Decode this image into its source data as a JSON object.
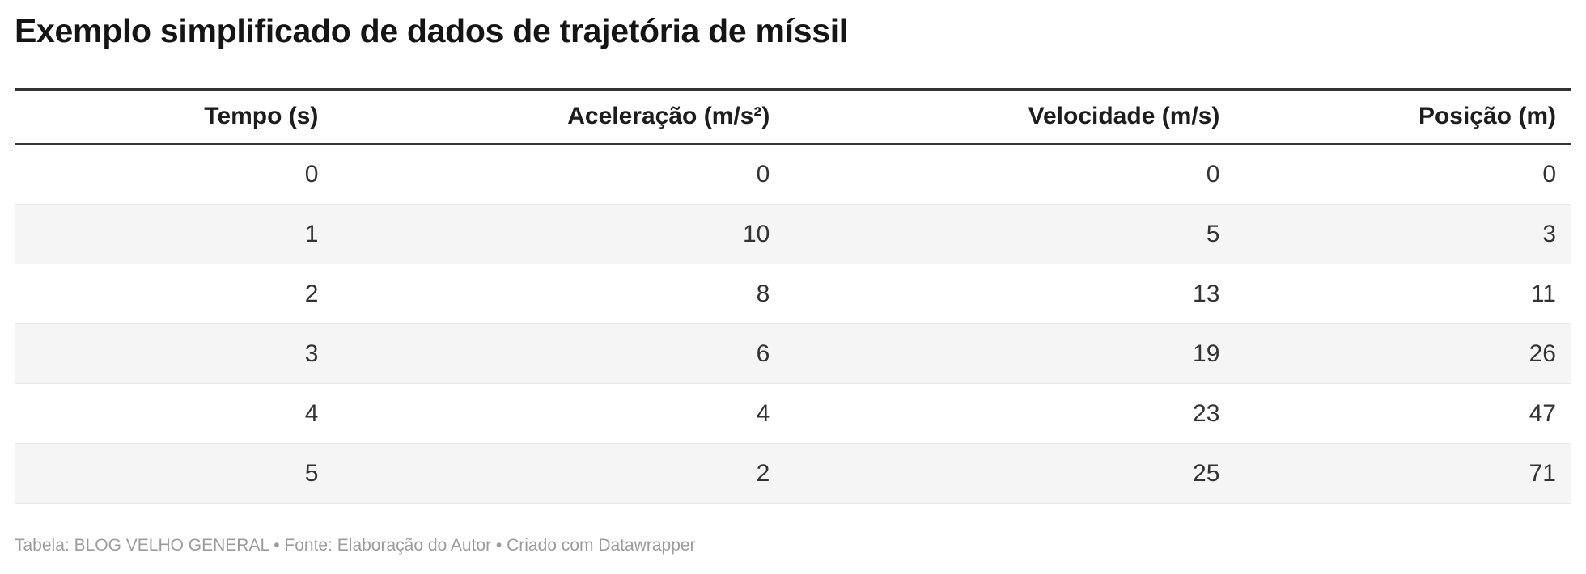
{
  "title": "Exemplo simplificado de dados de trajetória de míssil",
  "table": {
    "columns": [
      "Tempo (s)",
      "Aceleração (m/s²)",
      "Velocidade (m/s)",
      "Posição (m)"
    ],
    "rows": [
      [
        "0",
        "0",
        "0",
        "0"
      ],
      [
        "1",
        "10",
        "5",
        "3"
      ],
      [
        "2",
        "8",
        "13",
        "11"
      ],
      [
        "3",
        "6",
        "19",
        "26"
      ],
      [
        "4",
        "4",
        "23",
        "47"
      ],
      [
        "5",
        "2",
        "25",
        "71"
      ]
    ]
  },
  "footer": {
    "table_label": "Tabela: ",
    "publisher": "BLOG VELHO GENERAL",
    "separator": " • ",
    "source": "Fonte: Elaboração do Autor",
    "created_with": "Criado com ",
    "tool": "Datawrapper"
  },
  "colors": {
    "background": "#ffffff",
    "title_text": "#151515",
    "header_text": "#1d1d1d",
    "cell_text": "#333333",
    "rule": "#333333",
    "row_stripe": "#f5f5f5",
    "row_border": "#e8e8e8",
    "footer_text": "#9c9c9c"
  },
  "chart_data": {
    "type": "table",
    "title": "Exemplo simplificado de dados de trajetória de míssil",
    "columns": [
      "Tempo (s)",
      "Aceleração (m/s²)",
      "Velocidade (m/s)",
      "Posição (m)"
    ],
    "rows": [
      [
        0,
        0,
        0,
        0
      ],
      [
        1,
        10,
        5,
        3
      ],
      [
        2,
        8,
        13,
        11
      ],
      [
        3,
        6,
        19,
        26
      ],
      [
        4,
        4,
        23,
        47
      ],
      [
        5,
        2,
        25,
        71
      ]
    ],
    "notes": "Tabela: BLOG VELHO GENERAL • Fonte: Elaboração do Autor • Criado com Datawrapper",
    "layout_hints": {
      "alignment": "right",
      "striped_rows": true,
      "stripe_on": "odd-indexed rows (1,3,5)",
      "grid": "horizontal hairlines only, thick rules above and below header"
    }
  }
}
